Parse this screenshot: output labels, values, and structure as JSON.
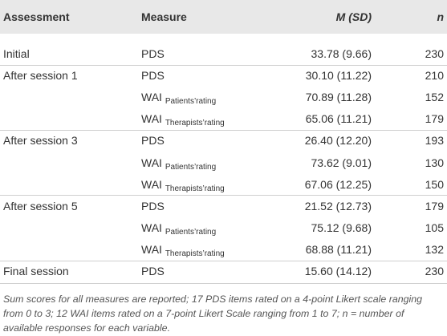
{
  "table": {
    "header": [
      "Assessment",
      "Measure",
      "M (SD)",
      "n"
    ],
    "rows": [
      {
        "assessment": "Initial",
        "measure": "PDS",
        "msd": "33.78 (9.66)",
        "n": 230
      },
      {
        "assessment": "After session 1",
        "measure": "PDS",
        "msd": "30.10 (11.22)",
        "n": 210
      },
      {
        "measure": "WAI",
        "sub": "Patients’rating",
        "msd": "70.89 (11.28)",
        "n": 152
      },
      {
        "measure": "WAI",
        "sub": "Therapists’rating",
        "msd": "65.06 (11.21)",
        "n": 179
      },
      {
        "assessment": "After session 3",
        "measure": "PDS",
        "msd": "26.40 (12.20)",
        "n": 193
      },
      {
        "measure": "WAI",
        "sub": "Patients’rating",
        "msd": "73.62 (9.01)",
        "n": 130
      },
      {
        "measure": "WAI",
        "sub": "Therapists’rating",
        "msd": "67.06 (12.25)",
        "n": 150
      },
      {
        "assessment": "After session 5",
        "measure": "PDS",
        "msd": "21.52 (12.73)",
        "n": 179
      },
      {
        "measure": "WAI",
        "sub": "Patients’rating",
        "msd": "75.12 (9.68)",
        "n": 105
      },
      {
        "measure": "WAI",
        "sub": "Therapists’rating",
        "msd": "68.88 (11.21)",
        "n": 132
      },
      {
        "assessment": "Final session",
        "measure": "PDS",
        "msd": "15.60 (14.12)",
        "n": 230
      }
    ],
    "footnote": "Sum scores for all measures are reported; 17 PDS items rated on a 4-point Likert scale ranging from 0 to 3; 12 WAI items rated on a 7-point Likert Scale ranging from 1 to 7; n = number of available responses for each variable."
  }
}
